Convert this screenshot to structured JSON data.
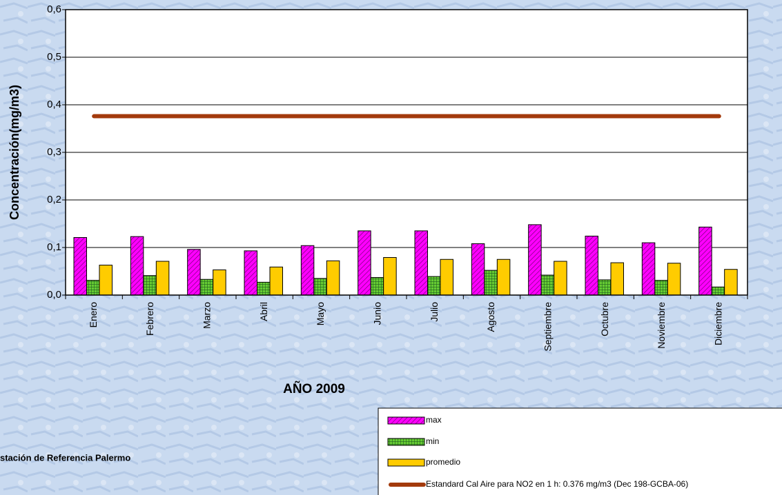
{
  "chart_data": {
    "type": "bar",
    "y_label": "Concentración(mg/m3)",
    "x_label": "AÑO 2009",
    "note": "stación de Referencia Palermo",
    "categories": [
      "Enero",
      "Febrero",
      "Marzo",
      "Abril",
      "Mayo",
      "Junio",
      "Julio",
      "Agosto",
      "Septiembre",
      "Octubre",
      "Noviembre",
      "Diciembre"
    ],
    "series": [
      {
        "name": "max",
        "color": "#ff00ff",
        "hatch": "diagonal",
        "values": [
          0.121,
          0.123,
          0.096,
          0.093,
          0.104,
          0.135,
          0.135,
          0.108,
          0.148,
          0.124,
          0.11,
          0.143
        ]
      },
      {
        "name": "min",
        "color": "#339933",
        "hatch": "grid",
        "values": [
          0.031,
          0.041,
          0.033,
          0.027,
          0.035,
          0.037,
          0.039,
          0.052,
          0.042,
          0.032,
          0.031,
          0.017
        ]
      },
      {
        "name": "promedio",
        "color": "#ffcc00",
        "hatch": "none",
        "values": [
          0.063,
          0.071,
          0.053,
          0.059,
          0.072,
          0.079,
          0.075,
          0.075,
          0.071,
          0.068,
          0.067,
          0.054
        ]
      },
      {
        "name": "Estandard Cal Aire para NO2 en 1 h: 0.376 mg/m3 (Dec 198-GCBA-06)",
        "type": "line",
        "color": "#a33a0c",
        "values": [
          0.376,
          0.376,
          0.376,
          0.376,
          0.376,
          0.376,
          0.376,
          0.376,
          0.376,
          0.376,
          0.376,
          0.376
        ]
      }
    ],
    "ylim": [
      0,
      0.6
    ],
    "yticks": [
      {
        "value": 0,
        "label": "0,0"
      },
      {
        "value": 0.1,
        "label": "0,1"
      },
      {
        "value": 0.2,
        "label": "0,2"
      },
      {
        "value": 0.3,
        "label": "0,3"
      },
      {
        "value": 0.4,
        "label": "0,4"
      },
      {
        "value": 0.5,
        "label": "0,5"
      },
      {
        "value": 0.6,
        "label": "0,6"
      }
    ],
    "grid": true
  }
}
